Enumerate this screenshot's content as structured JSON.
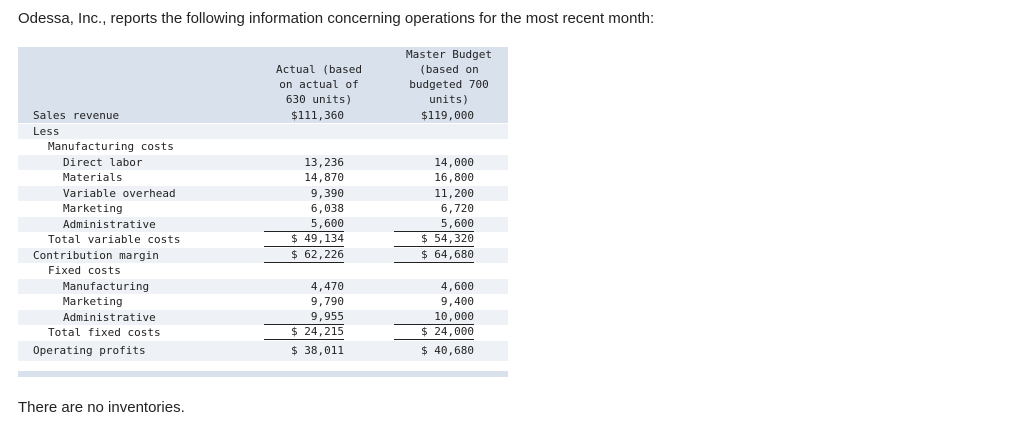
{
  "intro": "Odessa, Inc., reports the following information concerning operations for the most recent month:",
  "header": {
    "actual": [
      "Actual (based",
      "on actual of",
      "630 units)"
    ],
    "budget": [
      "Master Budget",
      "(based on",
      "budgeted 700",
      "units)"
    ]
  },
  "rows": [
    {
      "label": "Sales revenue",
      "actual": "$111,360",
      "budget": "$119,000"
    },
    {
      "label": "Less"
    },
    {
      "label": "Manufacturing costs"
    },
    {
      "label": "Direct labor",
      "actual": "13,236",
      "budget": "14,000"
    },
    {
      "label": "Materials",
      "actual": "14,870",
      "budget": "16,800"
    },
    {
      "label": "Variable overhead",
      "actual": "9,390",
      "budget": "11,200"
    },
    {
      "label": "Marketing",
      "actual": "6,038",
      "budget": "6,720"
    },
    {
      "label": "Administrative",
      "actual": "5,600",
      "budget": "5,600"
    },
    {
      "label": "Total variable costs",
      "actual": "$ 49,134",
      "budget": "$ 54,320"
    },
    {
      "label": "Contribution margin",
      "actual": "$ 62,226",
      "budget": "$ 64,680"
    },
    {
      "label": "Fixed costs"
    },
    {
      "label": "Manufacturing",
      "actual": "4,470",
      "budget": "4,600"
    },
    {
      "label": "Marketing",
      "actual": "9,790",
      "budget": "9,400"
    },
    {
      "label": "Administrative",
      "actual": "9,955",
      "budget": "10,000"
    },
    {
      "label": "Total fixed costs",
      "actual": "$ 24,215",
      "budget": "$ 24,000"
    },
    {
      "label": "Operating profits",
      "actual": "$ 38,011",
      "budget": "$ 40,680"
    }
  ],
  "note": "There are no inventories."
}
